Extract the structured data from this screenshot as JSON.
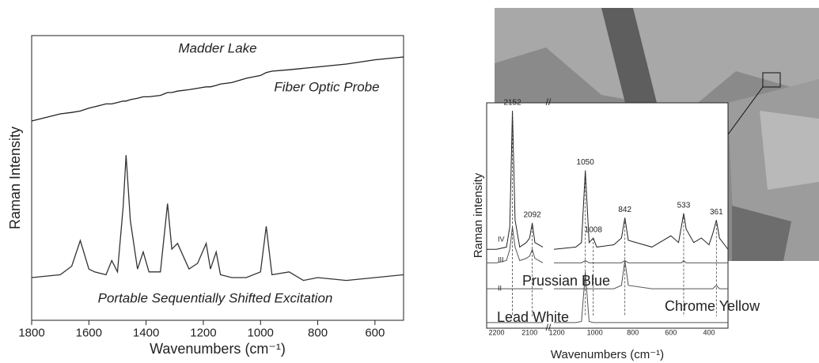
{
  "chart_data": [
    {
      "type": "line",
      "title": "Madder Lake",
      "y_label": "Raman Intensity",
      "x_label": "Wavenumbers (cm⁻¹)",
      "xlim": [
        1800,
        500
      ],
      "xticks": [
        1800,
        1600,
        1400,
        1200,
        1000,
        800,
        600
      ],
      "ylim": [
        0,
        100
      ],
      "x": [
        1800,
        1700,
        1660,
        1630,
        1600,
        1580,
        1540,
        1520,
        1500,
        1480,
        1470,
        1455,
        1430,
        1410,
        1390,
        1350,
        1325,
        1310,
        1290,
        1250,
        1220,
        1190,
        1175,
        1155,
        1140,
        1100,
        1050,
        1000,
        980,
        960,
        900,
        850,
        800,
        700,
        600,
        500
      ],
      "series": [
        {
          "name": "Fiber Optic Probe",
          "color": "#222222",
          "values": [
            70,
            72.5,
            73,
            73.5,
            74.5,
            75,
            76,
            76,
            76.5,
            77,
            77,
            77.5,
            78,
            78.5,
            78.5,
            79,
            80,
            80,
            80.5,
            81,
            81.5,
            82,
            82,
            82.5,
            83,
            83.5,
            85,
            86,
            87,
            87.5,
            88,
            88.5,
            89,
            90,
            91.5,
            92.5
          ]
        },
        {
          "name": "Portable Sequentially Shifted Excitation",
          "color": "#333333",
          "values": [
            15,
            16,
            19,
            28,
            18,
            17,
            16,
            21,
            17,
            40,
            58,
            35,
            18,
            24,
            17,
            17,
            41,
            25,
            27,
            18,
            20,
            27,
            18,
            24,
            16,
            15,
            15,
            17,
            33,
            16,
            17,
            14,
            15,
            14,
            15,
            16
          ]
        }
      ]
    },
    {
      "type": "line",
      "y_label": "Raman intensity",
      "x_label": "Wavenumbers (cm⁻¹)",
      "xlim": [
        2230,
        300
      ],
      "xbreak": [
        2060,
        1215
      ],
      "xticks": [
        2200,
        2100,
        1200,
        1000,
        800,
        600,
        400
      ],
      "ylim": [
        0,
        100
      ],
      "x": [
        2230,
        2200,
        2170,
        2160,
        2152,
        2144,
        2130,
        2110,
        2100,
        2092,
        2084,
        2060,
        1215,
        1100,
        1070,
        1050,
        1030,
        1008,
        990,
        900,
        860,
        842,
        824,
        700,
        600,
        560,
        545,
        533,
        520,
        480,
        440,
        400,
        380,
        361,
        345,
        300
      ],
      "series": [
        {
          "name": "IV",
          "color": "#222222",
          "values": [
            35,
            35,
            36,
            45,
            96.5,
            48,
            36,
            38,
            40,
            46.7,
            38,
            36,
            35,
            36,
            38,
            70,
            38,
            40,
            36,
            37,
            40,
            49,
            39,
            36,
            41,
            38,
            45,
            51,
            44,
            38,
            40,
            37,
            42,
            48,
            40,
            35
          ]
        },
        {
          "name": "III",
          "color": "#555555",
          "values": [
            29,
            29,
            30,
            35,
            45,
            36,
            30,
            31,
            32,
            35,
            31,
            29,
            29,
            29,
            29,
            30,
            29,
            29,
            29,
            29,
            29,
            30,
            29,
            29,
            29,
            29,
            29,
            30,
            29,
            29,
            29,
            29,
            29,
            29,
            29,
            29
          ]
        },
        {
          "name": "II",
          "color": "#555555",
          "values": [
            17.5,
            17.5,
            17.5,
            17.5,
            17.5,
            17.5,
            17.5,
            17.5,
            17.5,
            17.5,
            17.5,
            17.5,
            17.5,
            17.5,
            17.5,
            17.5,
            17.5,
            17.5,
            17.5,
            17.5,
            19,
            30,
            19,
            17.5,
            17.5,
            17.5,
            17.5,
            17.5,
            17.5,
            17.5,
            17.5,
            17.5,
            17.5,
            19,
            17.5,
            17.5
          ]
        },
        {
          "color": "#555555",
          "values": [
            2.5,
            2.5,
            2.5,
            2.5,
            2.5,
            2.5,
            2.5,
            2.5,
            2.5,
            2.5,
            2.5,
            2.5,
            2.5,
            2.5,
            3,
            25,
            3,
            2.5,
            2.5,
            2.5,
            2.5,
            2.5,
            2.5,
            2.5,
            2.5,
            2.5,
            2.5,
            2.5,
            2.5,
            2.5,
            2.5,
            2.5,
            2.5,
            2.5,
            2.5,
            2.5
          ]
        }
      ],
      "peak_labels": [
        2152,
        2092,
        1050,
        1008,
        842,
        533,
        361
      ],
      "annotations": [
        "Prussian Blue",
        "Chrome Yellow",
        "Lead White"
      ]
    }
  ]
}
